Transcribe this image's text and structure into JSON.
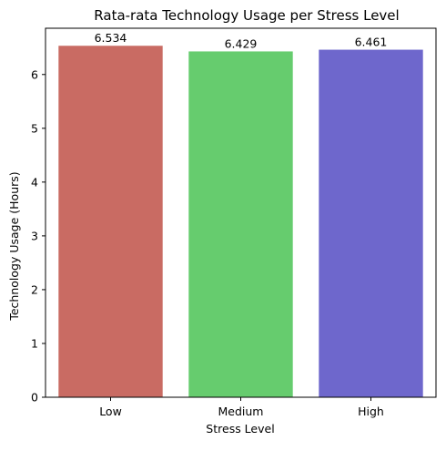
{
  "chart_data": {
    "type": "bar",
    "title": "Rata-rata Technology Usage per Stress Level",
    "xlabel": "Stress Level",
    "ylabel": "Technology Usage (Hours)",
    "categories": [
      "Low",
      "Medium",
      "High"
    ],
    "values": [
      6.534,
      6.429,
      6.461
    ],
    "value_labels": [
      "6.534",
      "6.429",
      "6.461"
    ],
    "colors": [
      "#c96b63",
      "#66cc6e",
      "#6e67cc"
    ],
    "ylim": [
      0,
      6.86
    ],
    "yticks": [
      0,
      1,
      2,
      3,
      4,
      5,
      6
    ],
    "grid": false,
    "legend": "none"
  }
}
